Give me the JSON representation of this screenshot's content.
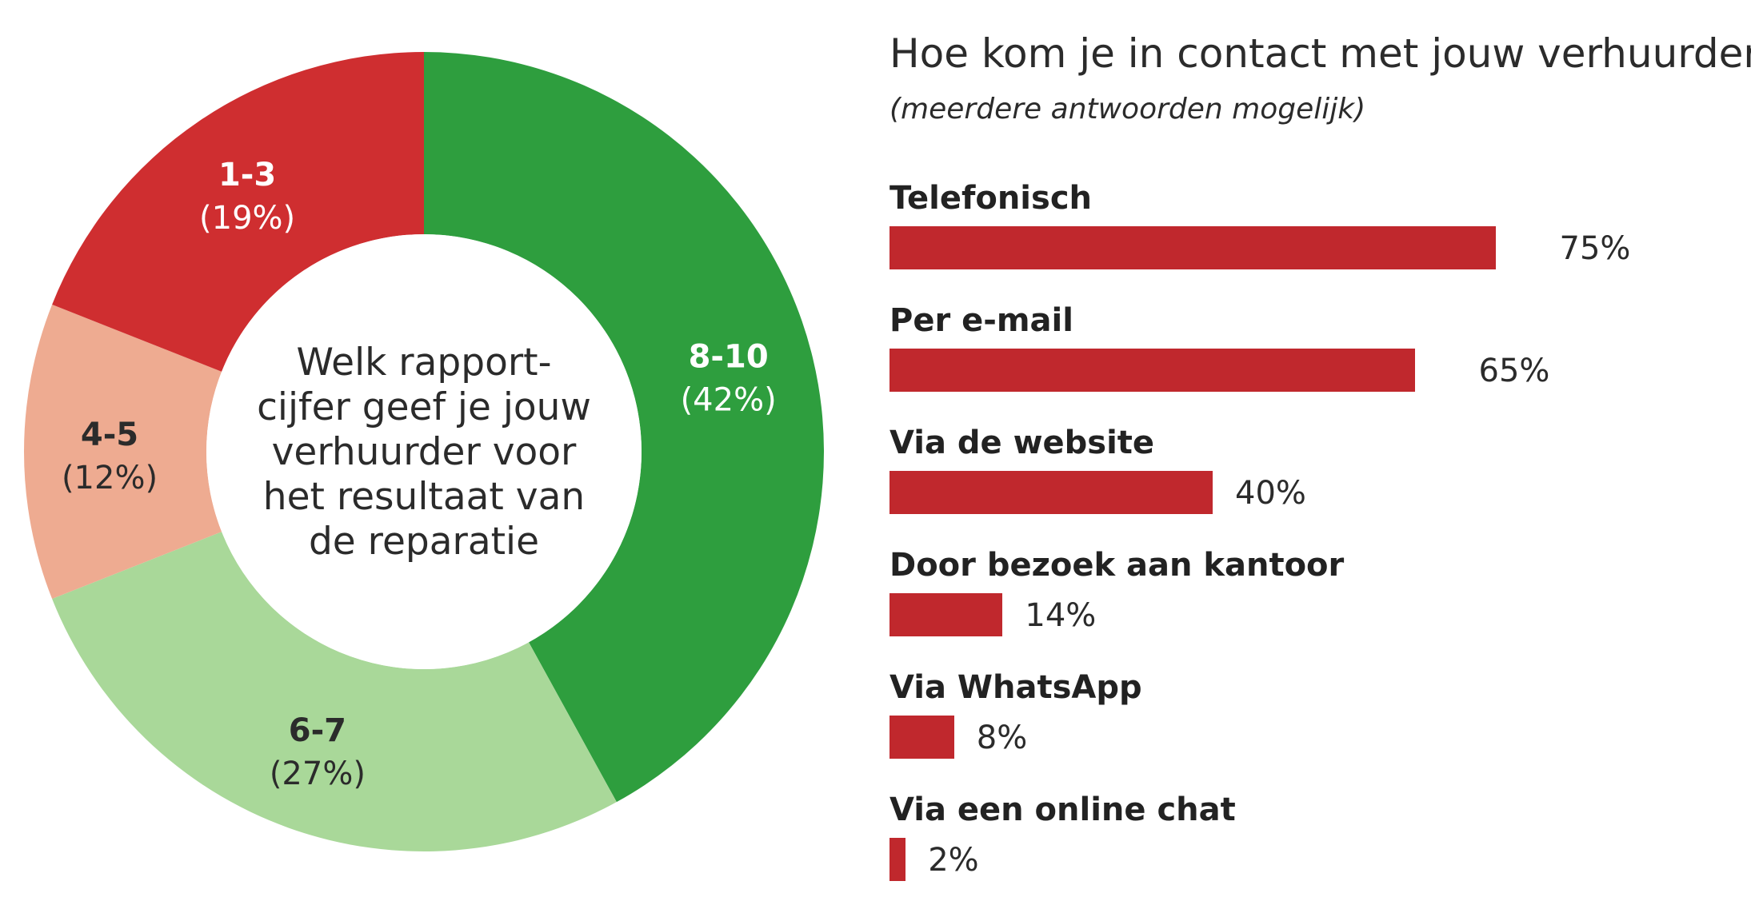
{
  "chart_data": [
    {
      "type": "pie",
      "title": "Welk rapportcijfer geef je jouw verhuurder voor het resultaat van de reparatie",
      "center_lines": [
        "Welk rapport-",
        "cijfer geef je jouw",
        "verhuurder voor",
        "het resultaat van",
        "de reparatie"
      ],
      "slices": [
        {
          "label": "8-10",
          "value": 42,
          "display": "(42%)",
          "color": "#2e9e3e",
          "text_color": "#ffffff"
        },
        {
          "label": "6-7",
          "value": 27,
          "display": "(27%)",
          "color": "#a9d899",
          "text_color": "#2b2b2b"
        },
        {
          "label": "4-5",
          "value": 12,
          "display": "(12%)",
          "color": "#eeab91",
          "text_color": "#2b2b2b"
        },
        {
          "label": "1-3",
          "value": 19,
          "display": "(19%)",
          "color": "#cf2e30",
          "text_color": "#ffffff"
        }
      ]
    },
    {
      "type": "bar",
      "title": "Hoe kom je in contact met jouw verhuurder?",
      "subtitle": "(meerdere antwoorden mogelijk)",
      "categories": [
        "Telefonisch",
        "Per e-mail",
        "Via de website",
        "Door bezoek aan kantoor",
        "Via WhatsApp",
        "Via een online chat"
      ],
      "values": [
        75,
        65,
        40,
        14,
        8,
        2
      ],
      "value_labels": [
        "75%",
        "65%",
        "40%",
        "14%",
        "8%",
        "2%"
      ],
      "bar_color": "#c0282d",
      "xlim": [
        0,
        100
      ]
    }
  ]
}
